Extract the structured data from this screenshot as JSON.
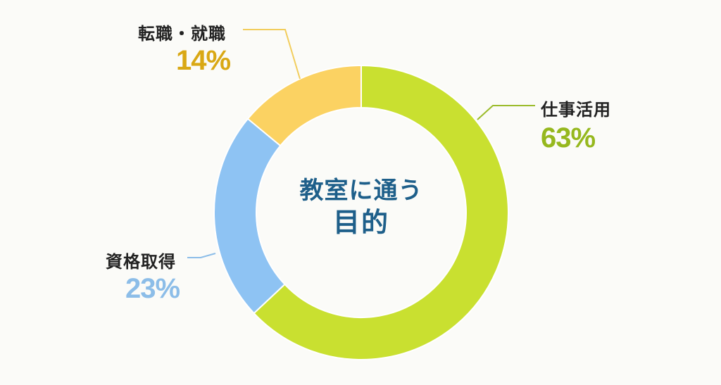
{
  "chart_data": {
    "type": "pie",
    "subtype": "donut",
    "title": "教室に通う目的",
    "center_label": {
      "line1": "教室に通う",
      "line2": "目的"
    },
    "categories": [
      "仕事活用",
      "資格取得",
      "転職・就職"
    ],
    "values": [
      63,
      23,
      14
    ],
    "unit": "%",
    "colors": [
      "#c9e030",
      "#8ec3f3",
      "#fbd262"
    ],
    "label_colors": [
      "#96b81e",
      "#8cbde8",
      "#d9a814"
    ],
    "start_angle_deg": 0,
    "direction": "clockwise",
    "legend": "none (leader-line labels)"
  },
  "labels": {
    "work": {
      "name": "仕事活用",
      "pct": "63%"
    },
    "cert": {
      "name": "資格取得",
      "pct": "23%"
    },
    "career": {
      "name": "転職・就職",
      "pct": "14%"
    }
  },
  "center": {
    "line1": "教室に通う",
    "line2": "目的"
  }
}
